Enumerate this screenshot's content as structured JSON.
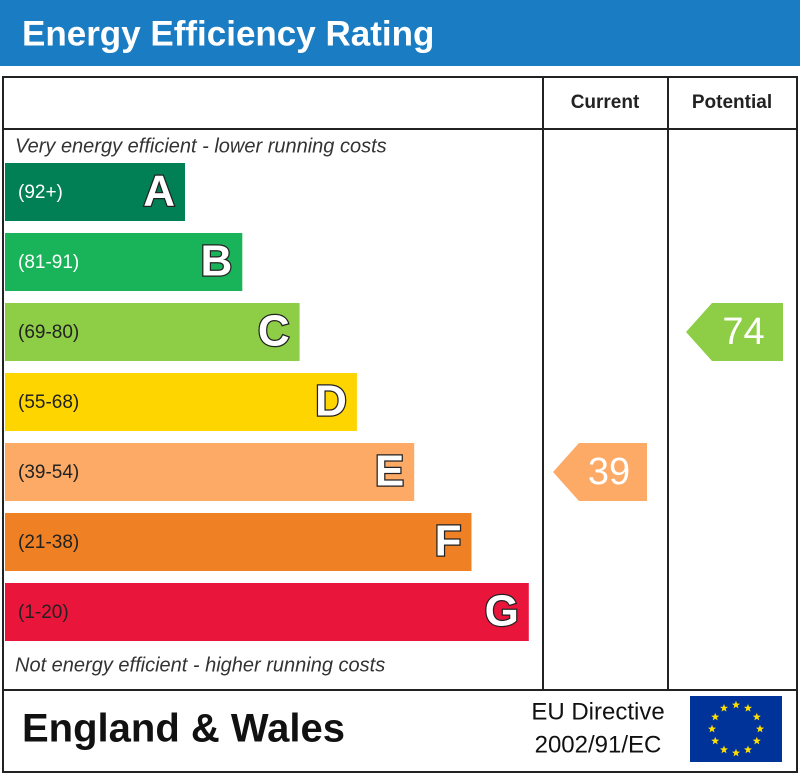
{
  "title": "Energy Efficiency Rating",
  "columns": {
    "current": "Current",
    "potential": "Potential"
  },
  "top_note": "Very energy efficient - lower running costs",
  "bottom_note": "Not energy efficient - higher running costs",
  "bands": [
    {
      "range": "(92+)",
      "letter": "A",
      "color": "#008054"
    },
    {
      "range": "(81-91)",
      "letter": "B",
      "color": "#19b459"
    },
    {
      "range": "(69-80)",
      "letter": "C",
      "color": "#8dce46"
    },
    {
      "range": "(55-68)",
      "letter": "D",
      "color": "#ffd500"
    },
    {
      "range": "(39-54)",
      "letter": "E",
      "color": "#fcaa65"
    },
    {
      "range": "(21-38)",
      "letter": "F",
      "color": "#ef8023"
    },
    {
      "range": "(1-20)",
      "letter": "G",
      "color": "#e9153b"
    }
  ],
  "current": 39,
  "potential": 74,
  "footer": {
    "region": "England & Wales",
    "directive": "EU Directive",
    "code": "2002/91/EC"
  }
}
